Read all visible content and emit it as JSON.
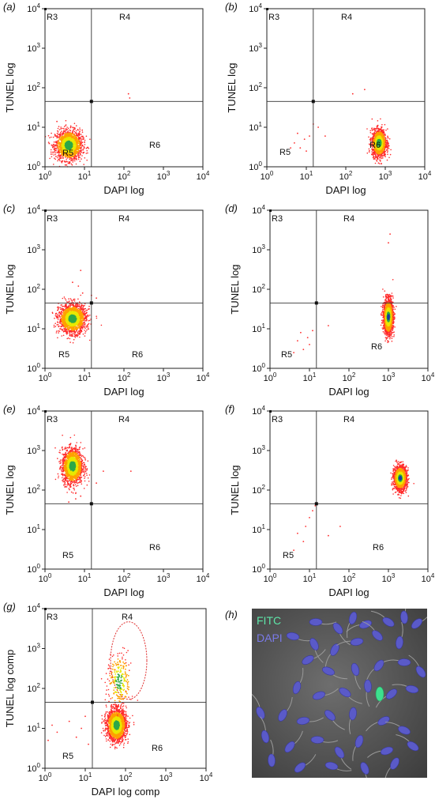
{
  "chart_data": [
    {
      "panel_label": "(a)",
      "type": "scatter",
      "xlabel": "DAPI log",
      "ylabel": "TUNEL log",
      "scale": "log",
      "xlim": [
        1,
        10000
      ],
      "ylim": [
        1,
        10000
      ],
      "gate": {
        "x": 15,
        "y": 45
      },
      "regions": [
        "R3",
        "R4",
        "R5",
        "R6"
      ],
      "populations": [
        {
          "x": 4,
          "y": 3.5,
          "sx": 0.17,
          "sy": 0.19,
          "n": 1600
        }
      ],
      "scatter_points": [
        [
          130,
          70
        ],
        [
          140,
          55
        ],
        [
          2,
          14
        ]
      ]
    },
    {
      "panel_label": "(b)",
      "type": "scatter",
      "xlabel": "DAPI log",
      "ylabel": "TUNEL log",
      "scale": "log",
      "xlim": [
        1,
        10000
      ],
      "ylim": [
        1,
        10000
      ],
      "gate": {
        "x": 15,
        "y": 45
      },
      "regions": [
        "R3",
        "R4",
        "R5",
        "R6"
      ],
      "populations": [
        {
          "x": 700,
          "y": 4,
          "sx": 0.09,
          "sy": 0.17,
          "n": 1500
        }
      ],
      "scatter_points": [
        [
          5,
          4
        ],
        [
          7,
          3
        ],
        [
          9,
          5
        ],
        [
          12,
          6
        ],
        [
          10,
          2.5
        ],
        [
          6,
          7
        ],
        [
          15,
          12
        ],
        [
          4,
          3
        ],
        [
          20,
          10
        ],
        [
          30,
          6
        ],
        [
          150,
          70
        ],
        [
          300,
          90
        ]
      ]
    },
    {
      "panel_label": "(c)",
      "type": "scatter",
      "xlabel": "DAPI log",
      "ylabel": "TUNEL log",
      "scale": "log",
      "xlim": [
        1,
        10000
      ],
      "ylim": [
        1,
        10000
      ],
      "gate": {
        "x": 15,
        "y": 45
      },
      "regions": [
        "R3",
        "R4",
        "R5",
        "R6"
      ],
      "populations": [
        {
          "x": 5,
          "y": 18,
          "sx": 0.17,
          "sy": 0.18,
          "n": 1800
        }
      ],
      "scatter_points": [
        [
          8,
          300
        ],
        [
          7,
          120
        ],
        [
          9,
          80
        ],
        [
          5,
          150
        ],
        [
          20,
          60
        ],
        [
          15,
          70
        ]
      ]
    },
    {
      "panel_label": "(d)",
      "type": "scatter",
      "xlabel": "DAPI log",
      "ylabel": "TUNEL log",
      "scale": "log",
      "xlim": [
        1,
        10000
      ],
      "ylim": [
        1,
        10000
      ],
      "gate": {
        "x": 15,
        "y": 45
      },
      "regions": [
        "R3",
        "R4",
        "R5",
        "R6"
      ],
      "populations": [
        {
          "x": 1000,
          "y": 20,
          "sx": 0.06,
          "sy": 0.22,
          "n": 1700
        }
      ],
      "scatter_points": [
        [
          5,
          5
        ],
        [
          7,
          3
        ],
        [
          9,
          6
        ],
        [
          12,
          9
        ],
        [
          4,
          2.5
        ],
        [
          10,
          4
        ],
        [
          6,
          8
        ],
        [
          30,
          12
        ],
        [
          1000,
          1500
        ],
        [
          1100,
          2500
        ]
      ]
    },
    {
      "panel_label": "(e)",
      "type": "scatter",
      "xlabel": "DAPI log",
      "ylabel": "TUNEL log",
      "scale": "log",
      "xlim": [
        1,
        10000
      ],
      "ylim": [
        1,
        10000
      ],
      "gate": {
        "x": 15,
        "y": 45
      },
      "regions": [
        "R3",
        "R4",
        "R5",
        "R6"
      ],
      "populations": [
        {
          "x": 5,
          "y": 400,
          "sx": 0.13,
          "sy": 0.22,
          "n": 1700
        }
      ],
      "scatter_points": [
        [
          6,
          60
        ],
        [
          4,
          50
        ],
        [
          8,
          70
        ],
        [
          30,
          300
        ],
        [
          150,
          300
        ],
        [
          20,
          150
        ]
      ]
    },
    {
      "panel_label": "(f)",
      "type": "scatter",
      "xlabel": "DAPI log",
      "ylabel": "TUNEL log",
      "scale": "log",
      "xlim": [
        1,
        10000
      ],
      "ylim": [
        1,
        10000
      ],
      "gate": {
        "x": 15,
        "y": 45
      },
      "regions": [
        "R3",
        "R4",
        "R5",
        "R6"
      ],
      "populations": [
        {
          "x": 2000,
          "y": 200,
          "sx": 0.08,
          "sy": 0.15,
          "n": 1600
        }
      ],
      "scatter_points": [
        [
          5,
          8
        ],
        [
          8,
          12
        ],
        [
          10,
          20
        ],
        [
          12,
          30
        ],
        [
          7,
          5
        ],
        [
          14,
          40
        ],
        [
          4,
          3
        ],
        [
          30,
          7
        ],
        [
          60,
          12
        ]
      ]
    },
    {
      "panel_label": "(g)",
      "type": "scatter",
      "xlabel": "DAPI log comp",
      "ylabel": "TUNEL log comp",
      "scale": "log",
      "xlim": [
        1,
        10000
      ],
      "ylim": [
        1,
        10000
      ],
      "gate": {
        "x": 15,
        "y": 45
      },
      "regions": [
        "R3",
        "R4",
        "R5",
        "R6"
      ],
      "populations": [
        {
          "x": 60,
          "y": 12,
          "sx": 0.12,
          "sy": 0.2,
          "n": 1800
        },
        {
          "x": 70,
          "y": 150,
          "sx": 0.15,
          "sy": 0.35,
          "n": 250
        }
      ],
      "ellipse": {
        "x": 120,
        "y": 500,
        "rx_decades": 0.45,
        "ry_decades": 0.97
      },
      "scatter_points": [
        [
          1.2,
          5
        ],
        [
          1.5,
          12
        ],
        [
          2,
          8
        ],
        [
          4,
          15
        ],
        [
          6,
          6
        ],
        [
          8,
          10
        ],
        [
          10,
          20
        ],
        [
          12,
          4
        ]
      ]
    }
  ],
  "panel_h": {
    "label": "(h)",
    "legend": [
      {
        "text": "FITC",
        "color": "#5ee6a8"
      },
      {
        "text": "DAPI",
        "color": "#7a7ae8"
      }
    ]
  },
  "colors": {
    "sparse": "#ff2a2a",
    "dense_mid": "#ffa000",
    "dense_high": "#e8e800",
    "core": "#2ea84a",
    "center": "#1a3aa0",
    "axis": "#222222"
  }
}
